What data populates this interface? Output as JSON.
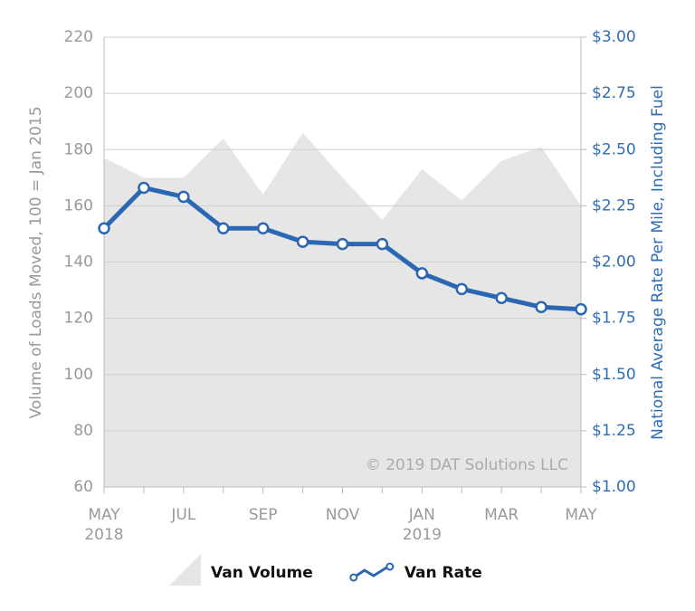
{
  "chart_data": {
    "type": "line",
    "y_label": "Volume of Loads Moved, 100 = Jan 2015",
    "y2_label": "National Average Rate Per Mile, Including Fuel",
    "annotation": "© 2019 DAT Solutions LLC",
    "categories": [
      "MAY\n2018",
      null,
      "JUL",
      null,
      "SEP",
      null,
      "NOV",
      null,
      "JAN\n2019",
      null,
      "MAR",
      null,
      "MAY"
    ],
    "series": [
      {
        "name": "Van Volume",
        "type": "area",
        "color": "#e6e6e6",
        "values": [
          177,
          170,
          170,
          184,
          164,
          186,
          170,
          155,
          173,
          162,
          176,
          181,
          160
        ]
      },
      {
        "name": "Van Rate",
        "type": "line",
        "axis": "y2",
        "color": "#2b67b2",
        "values": [
          2.15,
          2.33,
          2.29,
          2.15,
          2.15,
          2.09,
          2.08,
          2.08,
          1.95,
          1.88,
          1.84,
          1.8,
          1.79
        ]
      }
    ],
    "ylim": [
      60,
      220
    ],
    "yticks": [
      60,
      80,
      100,
      120,
      140,
      160,
      180,
      200,
      220
    ],
    "y2lim": [
      1,
      3
    ],
    "y2ticks": [
      {
        "value": 1,
        "label": "$1.00"
      },
      {
        "value": 1.25,
        "label": "$1.25"
      },
      {
        "value": 1.5,
        "label": "$1.50"
      },
      {
        "value": 1.75,
        "label": "$1.75"
      },
      {
        "value": 2,
        "label": "$2.00"
      },
      {
        "value": 2.25,
        "label": "$2.25"
      },
      {
        "value": 2.5,
        "label": "$2.50"
      },
      {
        "value": 2.75,
        "label": "$2.75"
      },
      {
        "value": 3,
        "label": "$3.00"
      }
    ],
    "grid": true
  }
}
